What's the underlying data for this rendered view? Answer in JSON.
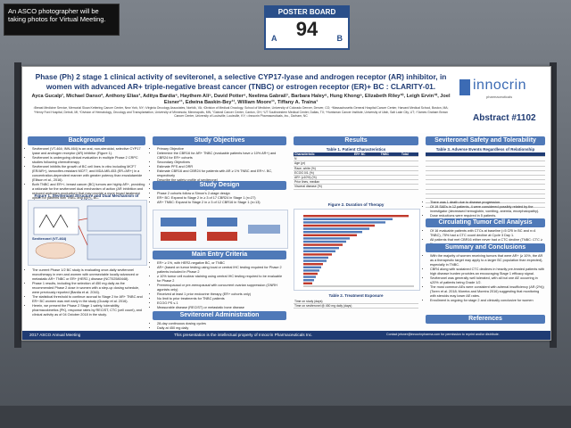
{
  "sign": {
    "text": "An ASCO photographer will be taking photos for Virtual Meeting."
  },
  "board": {
    "header": "POSTER BOARD",
    "number": "94",
    "left": "A",
    "right": "B"
  },
  "poster": {
    "title": "Phase (Ph) 2 stage 1 clinical activity of seviteronel, a selective CYP17-lyase and androgen receptor (AR) inhibitor, in women with advanced AR+ triple-negative breast cancer (TNBC) or estrogen receptor (ER)+ BC : CLARITY-01.",
    "authors": "Ayca Gucalp¹, Michael Danso², Anthony Elias³, Aditya Bardia⁴, Haythem Ali⁵, David Potter⁶, Neelima Gabrail⁷, Barbara Haley⁸, Hung Khong⁹, Elizabeth Riley¹⁰, Leigh Ervin¹⁰, Joel Eisner¹¹, Edwina Baskin-Bey¹¹, William Moore¹¹, Tiffany A. Traina¹",
    "affiliations": "¹Breast Medicine Service, Memorial Sloan Kettering Cancer Center, New York, NY; ²Virginia Oncology Associates, Norfolk, VA; ³Division of Medical Oncology, School of Medicine, University of Colorado Denver, Denver, CO; ⁴Massachusetts General Hospital Cancer Center, Harvard Medical School, Boston, MA; ⁵Henry Ford Hospital, Detroit, MI; ⁶Division of Hematology, Oncology and Transplantation, University of Minnesota, Minneapolis, MN; ⁷Gabrail Cancer Center, Canton, OH; ⁸UT Southwestern Medical Center, Dallas, TX; ⁹Huntsman Cancer Institute, University of Utah, Salt Lake City, UT; ¹⁰James Graham Brown Cancer Center, University of Louisville, Louisville, KY; ¹¹Innocrin Pharmaceuticals, Inc., Durham, NC",
    "logo": {
      "word": "innocrin",
      "tag": "pharmaceuticals"
    },
    "abstract": "Abstract #1102",
    "col1": {
      "background_h": "Background",
      "background": [
        "Seviteronel (VT-464; INN-464) is an oral, non-steroidal, selective CYP17 lyase and androgen receptor (AR) inhibitor (Figure 1).",
        "Seviteronel is undergoing clinical evaluation in multiple Phase 2 CRPC studies following chemotherapy.",
        "Seviteronel inhibits the growth of BC cell lines in vitro including MCF7 (ER/AR+), tamoxifen-resistant MCF7, and MDA-MB-453 (ER-/AR+) in a concentration-dependent manner with greater potency than enzalutamide (Ellison et al., 2016).",
        "Both TNBC and ER+/- breast cancer (BC) tumors are highly AR+, providing a rationale for the seviteronel dual mechanism of action (AR inhibition and reduced androgen production) that may provide a more broad treatment option for patients with TNBC and ER+/- BC."
      ],
      "fig1_cap": "Figure 1. Seviteronel Structure and Dual Mechanism of Action",
      "fig1_label": "Seviteronel (VT-464)",
      "mainentry_h": "Main Entry Criteria",
      "points": [
        "The current Phase 1/2 BC study is evaluating once-daily seviteronel monotherapy in men and women with unresectable locally advanced or metastatic AR+ TNBC or ER+ (HER2-) disease (NCT02580448).",
        "Phase 1 results, including the selection of 450 mg daily as the recommended Phase 2 dose in women with a step-up dosing schedule, were previously reported (Bardia et al. 2016).",
        "The statistical threshold to continue accrual to Stage 2 for AR+ TNBC and ER+ BC women was met early in the study (Gucalp et al. 2016).",
        "Herein, we present the Phase 2 Stage 1 safety, tolerability, pharmacokinetics (PK), response rates by RECIST, CTC (cell count), and clinical activity as of 04 October 2018 in the study."
      ]
    },
    "col2": {
      "objectives_h": "Study Objectives",
      "objectives": [
        "Primary Objective",
        "Determine the CBR16 for AR+ TNBC (evaluable patients have ≥ 10% AR+) and CBR24 for ER+ cohorts",
        "Secondary Objectives",
        "Estimate PFS and ORR",
        "Estimate CBR16 and CBR24 for patients with AR ≥ 1% TNBC and ER+/- BC, respectively",
        "Describe the safety profile of seviteronel",
        "Exploratory Correlative Objectives",
        "Determine circulating tumor cell (CTC) count over time"
      ],
      "design_h": "Study Design",
      "design": [
        "Phase 2 cohorts follow a Simon's 2-stage design",
        "ER+ BC: Expand to Stage 2 in ≥ 3 of 17 CBR24 in Stage 1 (n=27)",
        "AR+ TNBC: Expand to Stage 2 in ≥ 3 of 12 CBR16 in Stage 1 (n=13)"
      ],
      "criteria_h": "Main Entry Criteria",
      "criteria": [
        "ER+ ≥ 1%, with HER2-negative BC, or TNBC",
        "AR+ (based on tumor testing using local or central IHC testing required for Phase 2 patients included in Phase 2",
        "≥ 10% tumor cell nuclear staining using central IHC testing required to be evaluable for Phase 2",
        "Premenopausal or pre-menopausal with concurrent ovarian suppression (GNRH agonists only)",
        "Received at least 1 prior endocrine therapy (ER+ cohorts only)",
        "No limit to prior treatments for TNBC patients",
        "ECOG PS ≤ 1",
        "Measurable disease (RECIST) or metastatic bone disease"
      ],
      "admin_h": "Seviteronel Administration",
      "admin": [
        "28-day continuous dosing cycles",
        "Daily at 450 mg daily"
      ]
    },
    "col3": {
      "results_h": "Results",
      "table1_cap": "Table 1. Patient Characteristics",
      "table1_head": [
        "Characteristic",
        "ER+ BC",
        "TNBC",
        "Total"
      ],
      "table1_rows": [
        [
          "N",
          "",
          "",
          ""
        ],
        [
          "Age (yr)",
          "",
          "",
          ""
        ],
        [
          "Race, white (%)",
          "",
          "",
          ""
        ],
        [
          "ECOG 0/1 (%)",
          "",
          "",
          ""
        ],
        [
          "AR+ (≥10%) (%)",
          "",
          "",
          ""
        ],
        [
          "Prior lines, median",
          "",
          "",
          ""
        ],
        [
          "Visceral disease (%)",
          "",
          "",
          ""
        ]
      ],
      "fig2_cap": "Figure 2. Duration of Therapy",
      "table2_cap": "Table 2. Treatment Exposure",
      "table2_rows": [
        [
          "Time on study (days)",
          "",
          ""
        ],
        [
          "Time on seviteronel @ 450 mg daily (days)",
          "",
          ""
        ]
      ]
    },
    "col4": {
      "safety_h": "Seviteronel Safety and Tolerability",
      "table3_cap": "Table 3. Adverse Events Regardless of Relationship",
      "safety_notes": [
        "There was 1 death due to disease progression.",
        "Of 19 SAEs in 12 patients, 4 were considered possibly related by the investigator (decreased hemoglobin, vomiting, anemia, encephalopathy).",
        "Dose reductions were required in 5 patients."
      ],
      "ctc_h": "Circulating Tumor Cell Analysis",
      "ctc": [
        "Of 16 evaluable patients with CTCs at baseline (=5 CRI in BC and n=4 TNBC), 75% had a CTC count decline at Cycle 3 Day 1.",
        "All patients that met CBR16 either never had a CTC decline (TNBC: CTC ≥ 5)."
      ],
      "summary_h": "Summary and Conclusions",
      "summary": [
        "With the majority of women receiving tumors that were AR+ (≥ 10%, the AR as a therapeutic target may apply to a larger BC population than expected), especially in TNBC.",
        "CBR4 along with sustained CTC declines in heavily pre-treated patients with high disease burden provides an encouraging Stage 1 efficacy signal.",
        "Seviteronel was generally well tolerated, with all but one AE occurring in ≤20% of patients being Grade 1/2.",
        "The most common AEs were consistent with adrenal insufficiency (AR (2%)) (Toren et al. 2018; Moreira and Moreira 2016) suggesting that monitoring with steroids may lower AE rates.",
        "Enrollment is ongoing for stage 2 and clinically conclusive for women"
      ],
      "refs_h": "References"
    },
    "footer": {
      "left": "2017 ASCO Annual Meeting",
      "center": "This presentation is the intellectual property of Innocrin Pharmaceuticals Inc.",
      "right": "Contact jeisner@innocrinpharma.com for permission to reprint and/or distribute."
    }
  },
  "colors": {
    "navy": "#1f3b73",
    "section": "#4f79b8",
    "board": "#2a4f8a"
  }
}
